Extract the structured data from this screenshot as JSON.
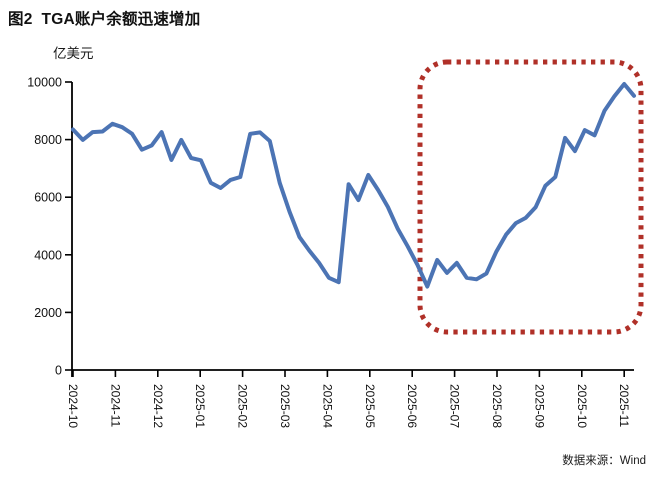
{
  "figure": {
    "title": "图2  TGA账户余额迅速增加",
    "unit_label": "亿美元",
    "source": "数据来源：Wind"
  },
  "colors": {
    "line": "#4C74B4",
    "highlight_box": "#B03028",
    "axis": "#000000",
    "text": "#111111"
  },
  "chart_data": {
    "type": "line",
    "title": "图2 TGA账户余额迅速增加",
    "ylabel": "亿美元",
    "ylim": [
      0,
      10000
    ],
    "y_ticks": [
      0,
      2000,
      4000,
      6000,
      8000,
      10000
    ],
    "x_tick_labels": [
      "2024-10",
      "2024-11",
      "2024-12",
      "2025-01",
      "2025-02",
      "2025-03",
      "2025-04",
      "2025-05",
      "2025-06",
      "2025-07",
      "2025-08",
      "2025-09",
      "2025-10",
      "2025-11"
    ],
    "x_sampling": "weekly points from 2024-10 to mid 2025-11",
    "grid": false,
    "legend": "none",
    "series": [
      {
        "name": "TGA账户余额",
        "values": [
          8350,
          7990,
          8260,
          8280,
          8550,
          8430,
          8200,
          7650,
          7800,
          8260,
          7290,
          7990,
          7360,
          7280,
          6500,
          6320,
          6600,
          6700,
          8200,
          8250,
          7950,
          6500,
          5500,
          4620,
          4150,
          3720,
          3200,
          3050,
          6450,
          5900,
          6770,
          6250,
          5660,
          4900,
          4300,
          3650,
          2900,
          3820,
          3370,
          3720,
          3200,
          3150,
          3350,
          4100,
          4700,
          5100,
          5280,
          5650,
          6400,
          6700,
          8060,
          7600,
          8330,
          8150,
          9000,
          9500,
          9930,
          9520
        ]
      }
    ],
    "annotation": {
      "type": "highlight-box",
      "style": "red dotted rounded rectangle",
      "from_label": "2025-06",
      "to_label": "2025-11"
    }
  }
}
